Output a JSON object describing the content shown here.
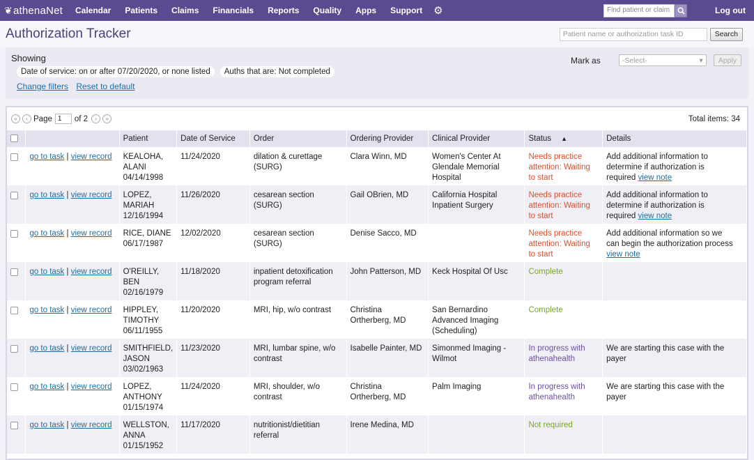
{
  "nav": {
    "logo_a": "athena",
    "logo_b": "Net",
    "items": [
      "Calendar",
      "Patients",
      "Claims",
      "Financials",
      "Reports",
      "Quality",
      "Apps",
      "Support"
    ],
    "find_placeholder": "Find patient or claim",
    "logout": "Log out"
  },
  "header": {
    "title": "Authorization Tracker",
    "search_placeholder": "Patient name or authorization task ID",
    "search_button": "Search"
  },
  "filters": {
    "showing": "Showing",
    "chip1_key": "Date of service:",
    "chip1_val": "on or after 07/20/2020, or none listed",
    "chip2_key": "Auths that are:",
    "chip2_val": "Not completed",
    "change_filters": "Change filters",
    "reset": "Reset to default",
    "mark_as": "Mark as",
    "select_placeholder": "-Select-",
    "apply": "Apply"
  },
  "pager": {
    "page_label": "Page",
    "page": "1",
    "of": "of 2",
    "total": "Total items: 34"
  },
  "table": {
    "headers": [
      "Patient",
      "Date of Service",
      "Order",
      "Ordering Provider",
      "Clinical Provider",
      "Status",
      "Details"
    ],
    "sort_indicator": "▲",
    "goto": "go to task",
    "view": "view record",
    "rows": [
      {
        "patient": [
          "KEALOHA,",
          "ALANI",
          "04/14/1998"
        ],
        "dos": "11/24/2020",
        "order": [
          "dilation & curettage",
          "(SURG)"
        ],
        "ordering": [
          "Clara Winn, MD"
        ],
        "clinical": [
          "Women's Center At",
          "Glendale Memorial",
          "Hospital"
        ],
        "status": [
          "Needs practice",
          "attention: Waiting",
          "to start"
        ],
        "status_type": "needs",
        "details": [
          "Add additional information to",
          "determine if authorization is",
          "required"
        ],
        "details_link": "view note"
      },
      {
        "patient": [
          "LOPEZ,",
          "MARIAH",
          "12/16/1994"
        ],
        "dos": "11/26/2020",
        "order": [
          "cesarean section",
          "(SURG)"
        ],
        "ordering": [
          "Gail OBrien, MD"
        ],
        "clinical": [
          "California Hospital",
          "Inpatient Surgery"
        ],
        "status": [
          "Needs practice",
          "attention: Waiting",
          "to start"
        ],
        "status_type": "needs",
        "details": [
          "Add additional information to",
          "determine if authorization is",
          "required"
        ],
        "details_link": "view note"
      },
      {
        "patient": [
          "RICE, DIANE",
          "06/17/1987"
        ],
        "dos": "12/02/2020",
        "order": [
          "cesarean section",
          "(SURG)"
        ],
        "ordering": [
          "Denise Sacco, MD"
        ],
        "clinical": [],
        "status": [
          "Needs practice",
          "attention: Waiting",
          "to start"
        ],
        "status_type": "needs",
        "details": [
          "Add additional information so we",
          "can begin the authorization process"
        ],
        "details_link": "view note"
      },
      {
        "patient": [
          "O'REILLY,",
          "BEN",
          "02/16/1979"
        ],
        "dos": "11/18/2020",
        "order": [
          "inpatient detoxification",
          "program referral"
        ],
        "ordering": [
          "John Patterson, MD"
        ],
        "clinical": [
          "Keck Hospital Of Usc"
        ],
        "status": [
          "Complete"
        ],
        "status_type": "complete",
        "details": [],
        "details_link": ""
      },
      {
        "patient": [
          "HIPPLEY,",
          "TIMOTHY",
          "06/11/1955"
        ],
        "dos": "11/20/2020",
        "order": [
          "MRI, hip, w/o contrast"
        ],
        "ordering": [
          "Christina",
          "Ortherberg, MD"
        ],
        "clinical": [
          "San Bernardino",
          "Advanced Imaging",
          "(Scheduling)"
        ],
        "status": [
          "Complete"
        ],
        "status_type": "complete",
        "details": [],
        "details_link": ""
      },
      {
        "patient": [
          "SMITHFIELD,",
          "JASON",
          "03/02/1963"
        ],
        "dos": "11/23/2020",
        "order": [
          "MRI, lumbar spine, w/o",
          "contrast"
        ],
        "ordering": [
          "Isabelle Painter, MD"
        ],
        "clinical": [
          "Simonmed Imaging -",
          "Wilmot"
        ],
        "status": [
          "In progress with",
          "athenahealth"
        ],
        "status_type": "progress",
        "details": [
          "We are starting this case with the",
          "payer"
        ],
        "details_link": ""
      },
      {
        "patient": [
          "LOPEZ,",
          "ANTHONY",
          "01/15/1974"
        ],
        "dos": "11/24/2020",
        "order": [
          "MRI, shoulder, w/o",
          "contrast"
        ],
        "ordering": [
          "Christina",
          "Ortherberg, MD"
        ],
        "clinical": [
          "Palm Imaging"
        ],
        "status": [
          "In progress with",
          "athenahealth"
        ],
        "status_type": "progress",
        "details": [
          "We are starting this case with the",
          "payer"
        ],
        "details_link": ""
      },
      {
        "patient": [
          "WELLSTON,",
          "ANNA",
          "01/15/1952"
        ],
        "dos": "11/17/2020",
        "order": [
          "nutritionist/dietitian",
          "referral"
        ],
        "ordering": [
          "Irene Medina, MD"
        ],
        "clinical": [],
        "status": [
          "Not required"
        ],
        "status_type": "complete",
        "details": [],
        "details_link": ""
      }
    ]
  }
}
